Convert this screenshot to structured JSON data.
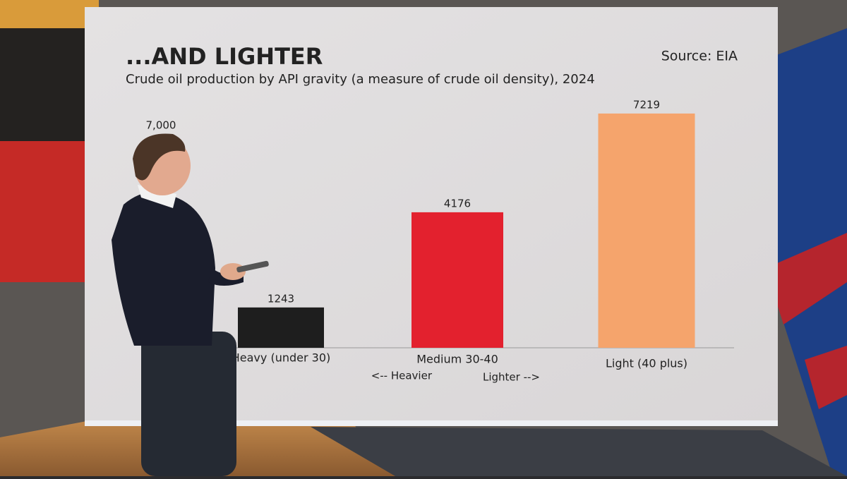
{
  "chart_data": {
    "type": "bar",
    "title": "...AND LIGHTER",
    "subtitle": "Crude oil production by API gravity (a measure of crude oil density), 2024",
    "source": "Source: EIA",
    "categories": [
      "Heavy (under 30)",
      "Medium 30-40",
      "Light (40 plus)"
    ],
    "values": [
      1243,
      4176,
      7219
    ],
    "colors": [
      "#1e1e1e",
      "#e3212e",
      "#f5a46c"
    ],
    "ylim": [
      0,
      7500
    ],
    "yticks": [
      {
        "value": 7000,
        "label": "7,000"
      }
    ],
    "annotations": [
      "<-- Heavier",
      "Lighter -->"
    ]
  }
}
